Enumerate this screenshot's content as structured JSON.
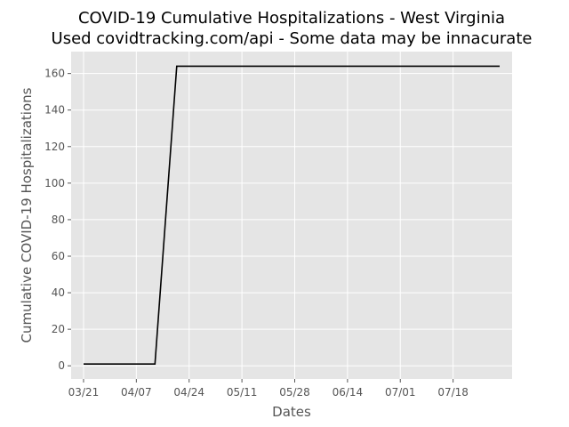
{
  "chart_data": {
    "type": "line",
    "title": "COVID-19 Cumulative Hospitalizations - West Virginia",
    "subtitle": "Used covidtracking.com/api - Some data may be innacurate",
    "xlabel": "Dates",
    "ylabel": "Cumulative COVID-19 Hospitalizations",
    "x_ticks": [
      "03/21",
      "04/07",
      "04/24",
      "05/11",
      "05/28",
      "06/14",
      "07/01",
      "07/18"
    ],
    "y_ticks": [
      0,
      20,
      40,
      60,
      80,
      100,
      120,
      140,
      160
    ],
    "ylim": [
      -7.2,
      172
    ],
    "xlim": [
      "2020-03-17",
      "2020-08-06"
    ],
    "grid": true,
    "line_color": "#000000",
    "background_color": "#e5e5e5",
    "series": [
      {
        "x": [
          "2020-03-21",
          "2020-04-13",
          "2020-04-20",
          "2020-08-02"
        ],
        "y": [
          1,
          1,
          164,
          164
        ]
      }
    ]
  }
}
